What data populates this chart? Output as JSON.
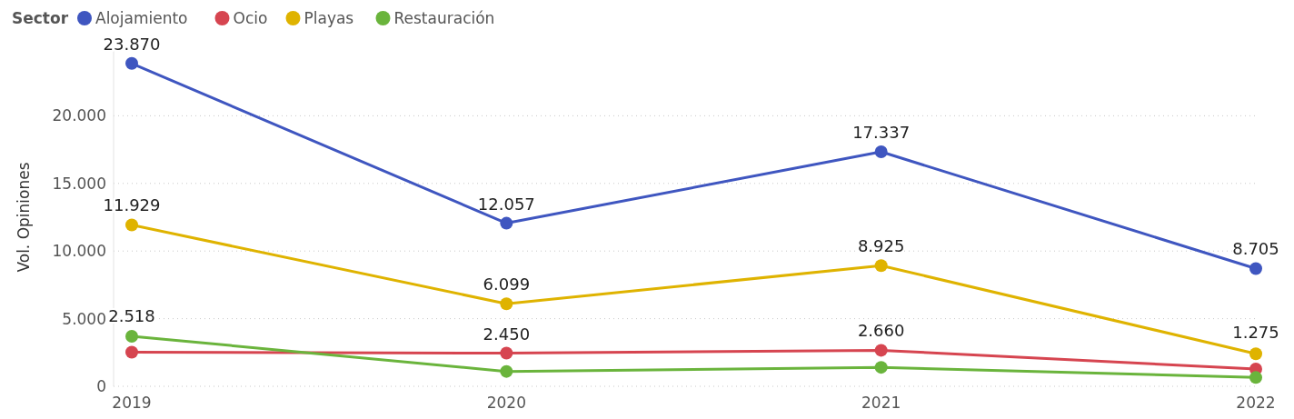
{
  "chart_data": {
    "type": "line",
    "legend_title": "Sector",
    "ylabel": "Vol. Opiniones",
    "categories": [
      "2019",
      "2020",
      "2021",
      "2022"
    ],
    "ylim": [
      0,
      25000
    ],
    "yticks": [
      {
        "value": 0,
        "label": "0"
      },
      {
        "value": 5000,
        "label": "5.000"
      },
      {
        "value": 10000,
        "label": "10.000"
      },
      {
        "value": 15000,
        "label": "15.000"
      },
      {
        "value": 20000,
        "label": "20.000"
      }
    ],
    "grid": "y",
    "legend": "top left",
    "marker": "circle",
    "line_style": "solid",
    "series": [
      {
        "name": "Alojamiento",
        "color": "#3f56c0",
        "values": [
          23870,
          12057,
          17337,
          8705
        ],
        "value_labels": [
          "23.870",
          "12.057",
          "17.337",
          "8.705"
        ]
      },
      {
        "name": "Ocio",
        "color": "#d64550",
        "values": [
          2518,
          2450,
          2660,
          1275
        ],
        "value_labels": [
          "2.518",
          "2.450",
          "2.660",
          "1.275"
        ]
      },
      {
        "name": "Playas",
        "color": "#dfb300",
        "values": [
          11929,
          6099,
          8925,
          2400
        ],
        "value_labels": [
          "11.929",
          "6.099",
          "8.925",
          null
        ]
      },
      {
        "name": "Restauración",
        "color": "#6ab43c",
        "values": [
          3700,
          1100,
          1400,
          650
        ],
        "value_labels": [
          null,
          null,
          null,
          null
        ]
      }
    ]
  }
}
